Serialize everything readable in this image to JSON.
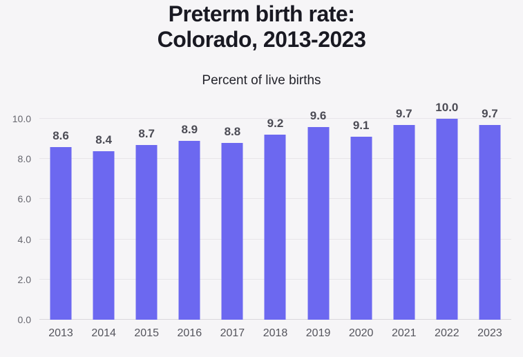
{
  "header": {
    "title_lines": [
      "Preterm birth rate:",
      "Colorado, 2013-2023"
    ],
    "subtitle": "Percent of live births"
  },
  "chart_data": {
    "type": "bar",
    "title": "Preterm birth rate: Colorado, 2013-2023",
    "subtitle": "Percent of live births",
    "categories": [
      "2013",
      "2014",
      "2015",
      "2016",
      "2017",
      "2018",
      "2019",
      "2020",
      "2021",
      "2022",
      "2023"
    ],
    "values": [
      8.6,
      8.4,
      8.7,
      8.9,
      8.8,
      9.2,
      9.6,
      9.1,
      9.7,
      10.0,
      9.7
    ],
    "value_labels": [
      "8.6",
      "8.4",
      "8.7",
      "8.9",
      "8.8",
      "9.2",
      "9.6",
      "9.1",
      "9.7",
      "10.0",
      "9.7"
    ],
    "xlabel": "",
    "ylabel": "",
    "ylim": [
      0,
      10
    ],
    "yticks": [
      0.0,
      2.0,
      4.0,
      6.0,
      8.0,
      10.0
    ],
    "ytick_labels": [
      "0.0",
      "2.0",
      "4.0",
      "6.0",
      "8.0",
      "10.0"
    ],
    "grid": true,
    "legend": false,
    "colors": {
      "bar": "#6C68F0",
      "background": "#F6F5F7",
      "gridline": "#E7E5E9",
      "baseline": "#D9D7DC",
      "title": "#191922",
      "subtitle": "#23232B",
      "value_label": "#4B4B54",
      "ytick_label": "#65656D",
      "xtick_label": "#54545C"
    }
  }
}
